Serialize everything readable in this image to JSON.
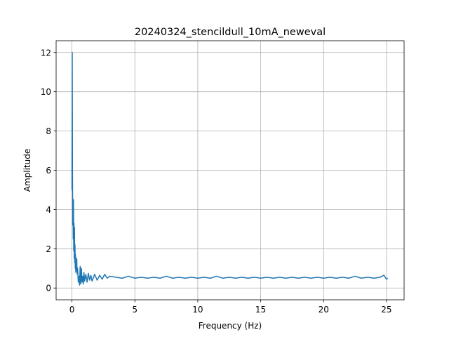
{
  "chart_data": {
    "type": "line",
    "title": "20240324_stencildull_10mA_neweval",
    "xlabel": "Frequency (Hz)",
    "ylabel": "Amplitude",
    "xlim": [
      -1.26,
      26.4
    ],
    "ylim": [
      -0.6,
      12.6
    ],
    "xticks": [
      0,
      5,
      10,
      15,
      20,
      25
    ],
    "xtick_labels": [
      "0",
      "5",
      "10",
      "15",
      "20",
      "25"
    ],
    "yticks": [
      0,
      2,
      4,
      6,
      8,
      10,
      12
    ],
    "ytick_labels": [
      "0",
      "2",
      "4",
      "6",
      "8",
      "10",
      "12"
    ],
    "grid": true,
    "legend": "none",
    "series": [
      {
        "color": "#1f77b4",
        "x": [
          0.0,
          0.02,
          0.04,
          0.06,
          0.08,
          0.1,
          0.12,
          0.14,
          0.16,
          0.18,
          0.2,
          0.22,
          0.24,
          0.26,
          0.28,
          0.3,
          0.32,
          0.35,
          0.38,
          0.41,
          0.45,
          0.5,
          0.55,
          0.6,
          0.65,
          0.7,
          0.75,
          0.8,
          0.85,
          0.9,
          0.95,
          1.0,
          1.1,
          1.2,
          1.3,
          1.4,
          1.5,
          1.6,
          1.8,
          2.0,
          2.2,
          2.4,
          2.6,
          2.8,
          3.0,
          3.5,
          4.0,
          4.5,
          5.0,
          5.5,
          6.0,
          6.5,
          7.0,
          7.5,
          8.0,
          8.5,
          9.0,
          9.5,
          10.0,
          10.5,
          11.0,
          11.5,
          12.0,
          12.5,
          13.0,
          13.5,
          14.0,
          14.5,
          15.0,
          15.5,
          16.0,
          16.5,
          17.0,
          17.5,
          18.0,
          18.5,
          19.0,
          19.5,
          20.0,
          20.5,
          21.0,
          21.5,
          22.0,
          22.5,
          23.0,
          23.5,
          24.0,
          24.5,
          24.8,
          25.0,
          25.1
        ],
        "y": [
          5.0,
          12.0,
          6.0,
          3.2,
          4.3,
          2.5,
          4.5,
          1.9,
          3.3,
          1.5,
          3.1,
          1.3,
          2.2,
          1.0,
          1.7,
          0.8,
          1.3,
          0.9,
          1.5,
          0.7,
          1.0,
          0.3,
          0.6,
          0.15,
          1.1,
          0.2,
          1.0,
          0.3,
          0.6,
          0.2,
          0.8,
          0.35,
          0.7,
          0.3,
          0.75,
          0.4,
          0.65,
          0.35,
          0.7,
          0.4,
          0.65,
          0.45,
          0.7,
          0.5,
          0.6,
          0.55,
          0.5,
          0.6,
          0.5,
          0.55,
          0.5,
          0.55,
          0.5,
          0.6,
          0.5,
          0.55,
          0.5,
          0.55,
          0.5,
          0.55,
          0.5,
          0.6,
          0.5,
          0.55,
          0.5,
          0.55,
          0.5,
          0.55,
          0.5,
          0.55,
          0.5,
          0.55,
          0.5,
          0.55,
          0.5,
          0.55,
          0.5,
          0.55,
          0.5,
          0.55,
          0.5,
          0.55,
          0.5,
          0.6,
          0.5,
          0.55,
          0.5,
          0.55,
          0.65,
          0.45,
          0.5
        ]
      }
    ]
  }
}
